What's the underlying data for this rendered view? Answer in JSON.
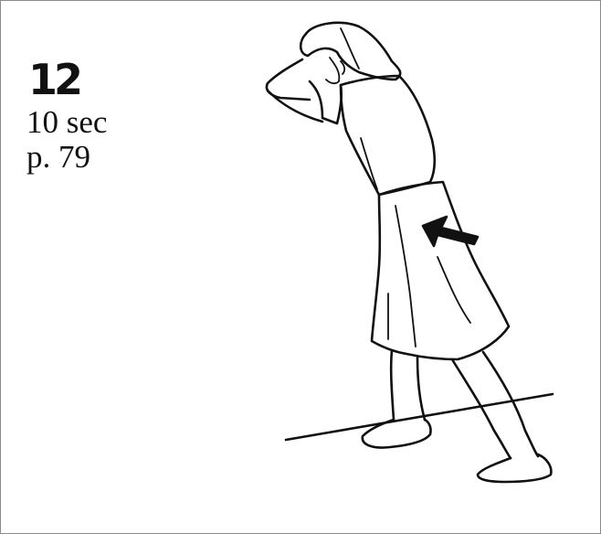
{
  "exercise": {
    "number": "12",
    "duration": "10 sec",
    "page_ref": "p. 79"
  },
  "illustration": {
    "subject": "stretch-figure",
    "icon": "arrow-icon"
  },
  "colors": {
    "ink": "#111111",
    "background": "#ffffff",
    "border": "#8c8c8c"
  }
}
